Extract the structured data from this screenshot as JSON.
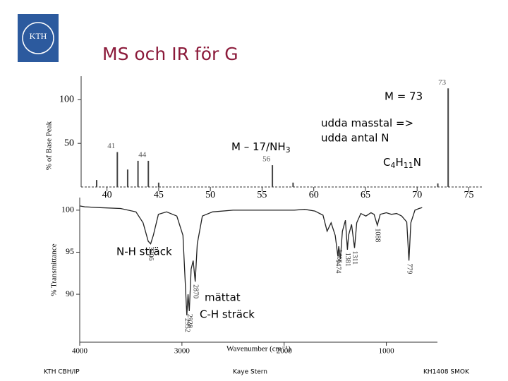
{
  "header": {
    "logo_text": "KTH",
    "title": "MS och IR för G"
  },
  "annotations": {
    "molecular_ion": "M = 73",
    "rule_line1": "udda masstal =>",
    "rule_line2": "udda antal N",
    "formula": [
      "C",
      "4",
      "H",
      "11",
      "N"
    ],
    "mass_loss": [
      "M – 17/NH",
      "3"
    ],
    "nh": "N-H sträck",
    "ch_line1": "mättat",
    "ch_line2": "C-H sträck"
  },
  "footer": {
    "left": "KTH CBH/IP",
    "center": "Kaye Stern",
    "right": "KH1408 SMOK"
  },
  "chart_data": [
    {
      "type": "bar",
      "y_label": "% of Base Peak",
      "x": [
        39,
        41,
        42,
        43,
        44,
        45,
        56,
        58,
        72,
        73
      ],
      "values": [
        8,
        40,
        20,
        30,
        30,
        5,
        25,
        5,
        4,
        113
      ],
      "peak_labels": [
        41,
        44,
        56,
        73
      ],
      "color": "#444444",
      "xlim": [
        37.5,
        76.4
      ],
      "xticks": [
        40,
        45,
        50,
        55,
        60,
        65,
        70,
        75
      ],
      "ylim": [
        0,
        127
      ],
      "yticks": [
        50,
        100
      ]
    },
    {
      "type": "line",
      "y_label": "% Transmittance",
      "x_label": "Wavenumber (cm⁻¹)",
      "x": [
        4000,
        3950,
        3800,
        3600,
        3450,
        3380,
        3330,
        3306,
        3280,
        3230,
        3150,
        3050,
        2990,
        2970,
        2952,
        2940,
        2928,
        2910,
        2890,
        2870,
        2850,
        2800,
        2700,
        2500,
        2300,
        2100,
        2000,
        1900,
        1800,
        1700,
        1620,
        1580,
        1540,
        1500,
        1474,
        1466,
        1450,
        1430,
        1400,
        1381,
        1370,
        1340,
        1311,
        1290,
        1250,
        1200,
        1150,
        1120,
        1088,
        1060,
        1000,
        950,
        900,
        850,
        800,
        779,
        760,
        720,
        680,
        650
      ],
      "series": [
        {
          "color": "#222222",
          "values": [
            100.5,
            100.4,
            100.3,
            100.2,
            99.8,
            98.5,
            96.3,
            96.0,
            97.0,
            99.5,
            99.8,
            99.3,
            97.0,
            92.0,
            87.5,
            90.0,
            88.0,
            93.0,
            94.0,
            91.5,
            96.0,
            99.3,
            99.8,
            100.0,
            100.0,
            100.0,
            100.0,
            100.0,
            100.1,
            99.9,
            99.4,
            97.5,
            98.5,
            97.0,
            94.5,
            95.7,
            94.2,
            97.5,
            98.8,
            95.3,
            97.0,
            98.3,
            95.5,
            98.5,
            99.6,
            99.3,
            99.7,
            99.5,
            98.2,
            99.5,
            99.7,
            99.5,
            99.6,
            99.3,
            98.6,
            94.0,
            98.5,
            100.0,
            100.2,
            100.3
          ]
        }
      ],
      "peak_labels": [
        3306,
        2952,
        2928,
        2870,
        1474,
        1466,
        1381,
        1311,
        1088,
        779
      ],
      "xlim": [
        4000,
        500
      ],
      "xticks": [
        4000,
        3000,
        2000,
        1000
      ],
      "ylim": [
        84.3,
        101.5
      ],
      "yticks": [
        90,
        95,
        100
      ]
    }
  ]
}
